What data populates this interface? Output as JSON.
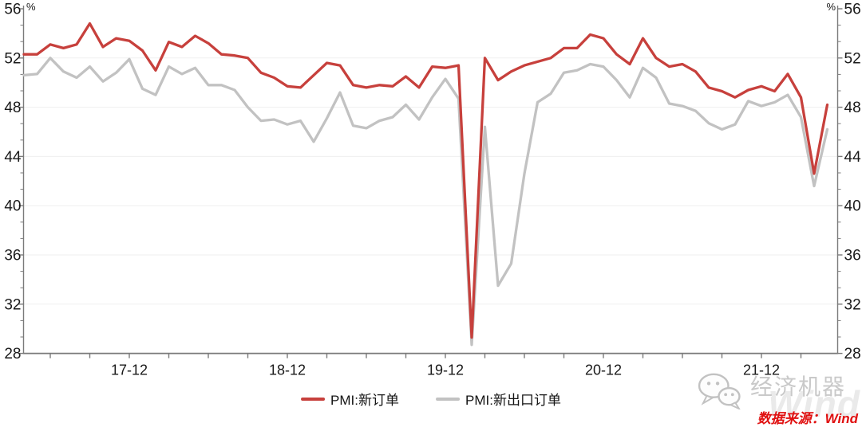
{
  "chart_data": {
    "type": "line",
    "title": "",
    "ylabel": "%",
    "ylim": [
      28,
      56
    ],
    "y_tick_step": 4,
    "y_ticks": [
      56,
      52,
      48,
      44,
      40,
      36,
      32,
      28
    ],
    "x_tick_every_months": 3,
    "x_tick_labels": [
      "17-12",
      "18-12",
      "19-12",
      "20-12",
      "21-12"
    ],
    "grid": "horizontal-faint",
    "legend_position": "bottom-center",
    "x": [
      "17-04",
      "17-05",
      "17-06",
      "17-07",
      "17-08",
      "17-09",
      "17-10",
      "17-11",
      "17-12",
      "18-01",
      "18-02",
      "18-03",
      "18-04",
      "18-05",
      "18-06",
      "18-07",
      "18-08",
      "18-09",
      "18-10",
      "18-11",
      "18-12",
      "19-01",
      "19-02",
      "19-03",
      "19-04",
      "19-05",
      "19-06",
      "19-07",
      "19-08",
      "19-09",
      "19-10",
      "19-11",
      "19-12",
      "20-01",
      "20-02",
      "20-03",
      "20-04",
      "20-05",
      "20-06",
      "20-07",
      "20-08",
      "20-09",
      "20-10",
      "20-11",
      "20-12",
      "21-01",
      "21-02",
      "21-03",
      "21-04",
      "21-05",
      "21-06",
      "21-07",
      "21-08",
      "21-09",
      "21-10",
      "21-11",
      "21-12",
      "22-01",
      "22-02",
      "22-03",
      "22-04",
      "22-05"
    ],
    "series": [
      {
        "name": "PMI:新订单",
        "color": "#c7403c",
        "values": [
          52.3,
          52.3,
          53.1,
          52.8,
          53.1,
          54.8,
          52.9,
          53.6,
          53.4,
          52.6,
          51.0,
          53.3,
          52.9,
          53.8,
          53.2,
          52.3,
          52.2,
          52.0,
          50.8,
          50.4,
          49.7,
          49.6,
          50.6,
          51.6,
          51.4,
          49.8,
          49.6,
          49.8,
          49.7,
          50.5,
          49.6,
          51.3,
          51.2,
          51.4,
          29.3,
          52.0,
          50.2,
          50.9,
          51.4,
          51.7,
          52.0,
          52.8,
          52.8,
          53.9,
          53.6,
          52.3,
          51.5,
          53.6,
          52.0,
          51.3,
          51.5,
          50.9,
          49.6,
          49.3,
          48.8,
          49.4,
          49.7,
          49.3,
          50.7,
          48.8,
          42.6,
          48.2
        ]
      },
      {
        "name": "PMI:新出口订单",
        "color": "#c2c2c2",
        "values": [
          50.6,
          50.7,
          52.0,
          50.9,
          50.4,
          51.3,
          50.1,
          50.8,
          51.9,
          49.5,
          49.0,
          51.3,
          50.7,
          51.2,
          49.8,
          49.8,
          49.4,
          48.0,
          46.9,
          47.0,
          46.6,
          46.9,
          45.2,
          47.1,
          49.2,
          46.5,
          46.3,
          46.9,
          47.2,
          48.2,
          47.0,
          48.8,
          50.3,
          48.7,
          28.7,
          46.4,
          33.5,
          35.3,
          42.6,
          48.4,
          49.1,
          50.8,
          51.0,
          51.5,
          51.3,
          50.2,
          48.8,
          51.2,
          50.4,
          48.3,
          48.1,
          47.7,
          46.7,
          46.2,
          46.6,
          48.5,
          48.1,
          48.4,
          49.0,
          47.2,
          41.6,
          46.2
        ]
      }
    ]
  },
  "legend": {
    "items": [
      {
        "label": "PMI:新订单",
        "color": "#c7403c"
      },
      {
        "label": "PMI:新出口订单",
        "color": "#c2c2c2"
      }
    ]
  },
  "watermark": {
    "wechat_account": "经济机器",
    "ghost_text": "Wind",
    "wechat_icon": "wechat-icon"
  },
  "footer": {
    "source_text": "数据来源：Wind"
  },
  "colors": {
    "axis": "#7a7a7a",
    "grid": "#efefef",
    "tick_text": "#1a1a1a",
    "line_new_orders": "#c7403c",
    "line_new_export_orders": "#c2c2c2",
    "source_text": "#e01010",
    "watermark_gray": "#c9c9c9",
    "ghost_gray": "#eaeaea"
  }
}
